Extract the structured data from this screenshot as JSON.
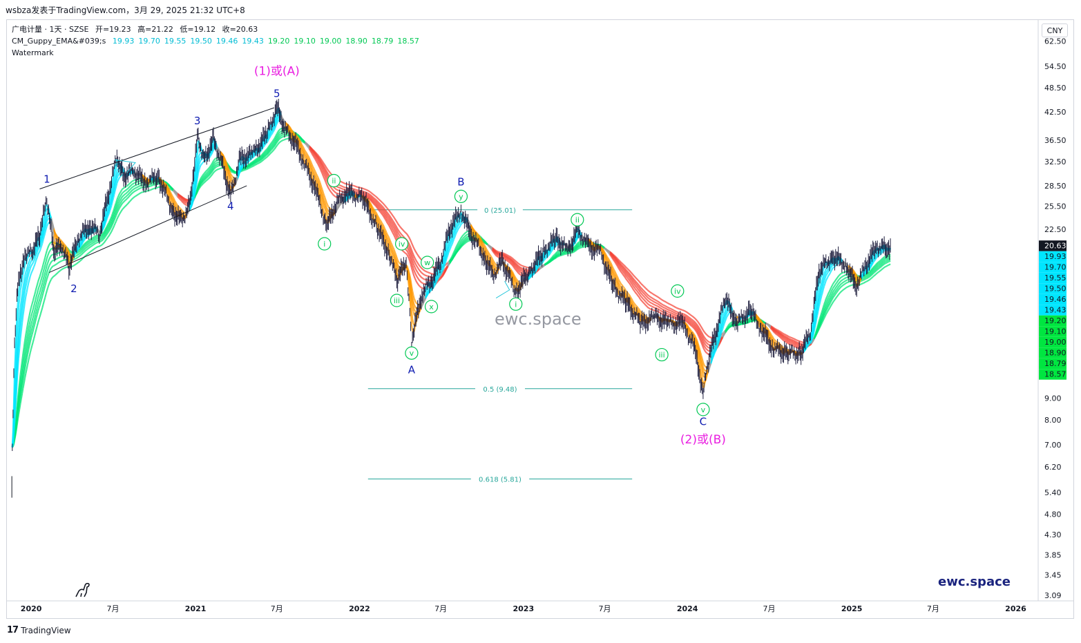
{
  "header": {
    "title": "wsbza发表于TradingView.com，3月 29, 2025 21:32 UTC+8"
  },
  "legend": {
    "symbol_line": "广电计量 · 1天 · SZSE",
    "ohlc": [
      {
        "label": "开",
        "value": "=19.23"
      },
      {
        "label": "高",
        "value": "=21.22"
      },
      {
        "label": "低",
        "value": "=19.12"
      },
      {
        "label": "收",
        "value": "=20.63"
      }
    ],
    "indicator_name": "CM_Guppy_EMA&#039;s",
    "indicator_values": [
      "19.93",
      "19.70",
      "19.55",
      "19.50",
      "19.46",
      "19.43",
      "19.20",
      "19.10",
      "19.00",
      "18.90",
      "18.79",
      "18.57"
    ],
    "watermark_line": "Watermark"
  },
  "colors": {
    "fast_ema": "#00bcd4",
    "slow_ema": "#00e676",
    "up_color": "#00e676",
    "down_color": "#f44336",
    "down_fast": "#ff9800",
    "neutral": "#9e9e9e",
    "wave_blue": "#0d1ab0",
    "wave_green": "#00c853",
    "wave_magenta": "#e91ee0",
    "fib": "#26a69a",
    "price_tag": "#131722"
  },
  "currency_button": "CNY",
  "watermark_text": "ewc.space",
  "brand_text": "ewc.space",
  "footer": {
    "logo": "17",
    "text": "TradingView"
  },
  "chart_data": {
    "type": "line",
    "title": "",
    "scale": "log",
    "ylim": [
      3.0,
      70.0
    ],
    "y_ticks": [
      62.5,
      54.5,
      48.5,
      42.5,
      36.5,
      32.5,
      28.5,
      25.5,
      22.5,
      9.0,
      8.0,
      7.0,
      6.2,
      5.4,
      4.8,
      4.3,
      3.85,
      3.45,
      3.09
    ],
    "y_tick_labels": [
      "62.50",
      "54.50",
      "48.50",
      "42.50",
      "36.50",
      "32.50",
      "28.50",
      "25.50",
      "22.50",
      "9.00",
      "8.00",
      "7.00",
      "6.20",
      "5.40",
      "4.80",
      "4.30",
      "3.85",
      "3.45",
      "3.09"
    ],
    "x_range": [
      "2019-11-08",
      "2026-02-20"
    ],
    "x_ticks": [
      {
        "date": "2020-01-01",
        "label": "2020",
        "bold": true
      },
      {
        "date": "2020-07-01",
        "label": "7月",
        "bold": false
      },
      {
        "date": "2021-01-01",
        "label": "2021",
        "bold": true
      },
      {
        "date": "2021-07-01",
        "label": "7月",
        "bold": false
      },
      {
        "date": "2022-01-01",
        "label": "2022",
        "bold": true
      },
      {
        "date": "2022-07-01",
        "label": "7月",
        "bold": false
      },
      {
        "date": "2023-01-01",
        "label": "2023",
        "bold": true
      },
      {
        "date": "2023-07-01",
        "label": "7月",
        "bold": false
      },
      {
        "date": "2024-01-01",
        "label": "2024",
        "bold": true
      },
      {
        "date": "2024-07-01",
        "label": "7月",
        "bold": false
      },
      {
        "date": "2025-01-01",
        "label": "2025",
        "bold": true
      },
      {
        "date": "2025-07-01",
        "label": "7月",
        "bold": false
      },
      {
        "date": "2026-01-01",
        "label": "2026",
        "bold": true
      }
    ],
    "price_series": [
      [
        "2019-11-20",
        6.9
      ],
      [
        "2019-11-25",
        12.0
      ],
      [
        "2019-12-02",
        16.5
      ],
      [
        "2019-12-10",
        18.0
      ],
      [
        "2019-12-20",
        19.5
      ],
      [
        "2020-01-05",
        20.0
      ],
      [
        "2020-01-20",
        22.0
      ],
      [
        "2020-02-05",
        26.5
      ],
      [
        "2020-02-20",
        20.0
      ],
      [
        "2020-03-10",
        20.5
      ],
      [
        "2020-03-25",
        18.3
      ],
      [
        "2020-04-15",
        21.5
      ],
      [
        "2020-05-10",
        23.0
      ],
      [
        "2020-06-01",
        22.0
      ],
      [
        "2020-06-20",
        27.0
      ],
      [
        "2020-07-10",
        33.5
      ],
      [
        "2020-07-25",
        30.0
      ],
      [
        "2020-08-15",
        31.0
      ],
      [
        "2020-09-10",
        29.0
      ],
      [
        "2020-10-10",
        30.0
      ],
      [
        "2020-11-10",
        25.0
      ],
      [
        "2020-12-01",
        23.5
      ],
      [
        "2020-12-20",
        26.0
      ],
      [
        "2021-01-05",
        37.5
      ],
      [
        "2021-01-20",
        33.0
      ],
      [
        "2021-02-10",
        36.5
      ],
      [
        "2021-03-01",
        32.0
      ],
      [
        "2021-03-20",
        27.0
      ],
      [
        "2021-04-10",
        33.0
      ],
      [
        "2021-05-10",
        34.0
      ],
      [
        "2021-06-10",
        38.0
      ],
      [
        "2021-07-01",
        43.5
      ],
      [
        "2021-07-20",
        38.5
      ],
      [
        "2021-08-10",
        36.0
      ],
      [
        "2021-09-01",
        32.0
      ],
      [
        "2021-09-25",
        28.0
      ],
      [
        "2021-10-20",
        22.8
      ],
      [
        "2021-11-10",
        26.0
      ],
      [
        "2021-12-05",
        27.5
      ],
      [
        "2022-01-10",
        26.5
      ],
      [
        "2022-02-10",
        22.5
      ],
      [
        "2022-03-10",
        19.5
      ],
      [
        "2022-03-25",
        17.0
      ],
      [
        "2022-04-15",
        19.0
      ],
      [
        "2022-04-27",
        12.3
      ],
      [
        "2022-05-20",
        16.0
      ],
      [
        "2022-06-10",
        17.0
      ],
      [
        "2022-07-01",
        19.0
      ],
      [
        "2022-07-20",
        22.5
      ],
      [
        "2022-08-15",
        25.0
      ],
      [
        "2022-09-05",
        22.0
      ],
      [
        "2022-10-05",
        19.5
      ],
      [
        "2022-10-25",
        17.5
      ],
      [
        "2022-11-15",
        19.0
      ],
      [
        "2022-12-15",
        16.0
      ],
      [
        "2023-01-15",
        18.0
      ],
      [
        "2023-02-15",
        20.0
      ],
      [
        "2023-03-15",
        21.5
      ],
      [
        "2023-04-10",
        20.0
      ],
      [
        "2023-05-01",
        22.5
      ],
      [
        "2023-05-25",
        20.5
      ],
      [
        "2023-06-20",
        20.0
      ],
      [
        "2023-07-20",
        16.5
      ],
      [
        "2023-08-20",
        15.0
      ],
      [
        "2023-09-20",
        13.5
      ],
      [
        "2023-10-20",
        14.0
      ],
      [
        "2023-11-20",
        13.5
      ],
      [
        "2023-12-20",
        13.5
      ],
      [
        "2024-01-15",
        12.0
      ],
      [
        "2024-02-05",
        9.3
      ],
      [
        "2024-02-20",
        11.5
      ],
      [
        "2024-03-10",
        13.5
      ],
      [
        "2024-03-25",
        15.5
      ],
      [
        "2024-04-20",
        13.5
      ],
      [
        "2024-05-20",
        14.5
      ],
      [
        "2024-06-15",
        13.0
      ],
      [
        "2024-07-10",
        11.8
      ],
      [
        "2024-08-10",
        11.5
      ],
      [
        "2024-09-10",
        11.5
      ],
      [
        "2024-10-01",
        13.0
      ],
      [
        "2024-10-20",
        18.0
      ],
      [
        "2024-11-20",
        19.5
      ],
      [
        "2024-12-20",
        18.5
      ],
      [
        "2025-01-10",
        16.5
      ],
      [
        "2025-02-01",
        18.5
      ],
      [
        "2025-02-25",
        20.5
      ],
      [
        "2025-03-20",
        20.3
      ],
      [
        "2025-03-28",
        20.63
      ]
    ],
    "ema_ribbon": {
      "fast_values": [
        19.93,
        19.7,
        19.55,
        19.5,
        19.46,
        19.43
      ],
      "slow_values": [
        19.2,
        19.1,
        19.0,
        18.9,
        18.79,
        18.57
      ],
      "current_price": 20.63
    },
    "fib_levels": [
      {
        "ratio": "0",
        "price": 25.01,
        "label": "0 (25.01)"
      },
      {
        "ratio": "0.5",
        "price": 9.48,
        "label": "0.5 (9.48)"
      },
      {
        "ratio": "0.618",
        "price": 5.81,
        "label": "0.618 (5.81)"
      }
    ],
    "fib_range": [
      "2022-01-20",
      "2023-08-31"
    ],
    "wave_labels": [
      {
        "text": "1",
        "date": "2020-02-05",
        "price": 29.5,
        "kind": "blue"
      },
      {
        "text": "2",
        "date": "2020-04-05",
        "price": 16.3,
        "kind": "blue"
      },
      {
        "text": "3",
        "date": "2021-01-05",
        "price": 40.5,
        "kind": "blue"
      },
      {
        "text": "4",
        "date": "2021-03-20",
        "price": 25.5,
        "kind": "blue"
      },
      {
        "text": "5",
        "date": "2021-07-01",
        "price": 47.0,
        "kind": "blue"
      },
      {
        "text": "(1)或(A)",
        "date": "2021-07-01",
        "price": 53.0,
        "kind": "magenta"
      },
      {
        "text": "i",
        "date": "2021-10-15",
        "price": 20.8,
        "kind": "circle"
      },
      {
        "text": "ii",
        "date": "2021-11-05",
        "price": 29.3,
        "kind": "circle"
      },
      {
        "text": "iii",
        "date": "2022-03-25",
        "price": 15.3,
        "kind": "circle"
      },
      {
        "text": "iv",
        "date": "2022-04-05",
        "price": 20.8,
        "kind": "circle"
      },
      {
        "text": "v",
        "date": "2022-04-27",
        "price": 11.5,
        "kind": "circle"
      },
      {
        "text": "A",
        "date": "2022-04-27",
        "price": 10.5,
        "kind": "blue"
      },
      {
        "text": "w",
        "date": "2022-06-01",
        "price": 18.8,
        "kind": "circle"
      },
      {
        "text": "x",
        "date": "2022-06-10",
        "price": 14.8,
        "kind": "circle"
      },
      {
        "text": "y",
        "date": "2022-08-15",
        "price": 26.9,
        "kind": "circle"
      },
      {
        "text": "B",
        "date": "2022-08-15",
        "price": 29.1,
        "kind": "blue"
      },
      {
        "text": "i",
        "date": "2022-12-15",
        "price": 15.0,
        "kind": "circle"
      },
      {
        "text": "ii",
        "date": "2023-05-01",
        "price": 23.7,
        "kind": "circle"
      },
      {
        "text": "iii",
        "date": "2023-11-05",
        "price": 11.4,
        "kind": "circle"
      },
      {
        "text": "iv",
        "date": "2023-12-10",
        "price": 16.1,
        "kind": "circle"
      },
      {
        "text": "v",
        "date": "2024-02-05",
        "price": 8.47,
        "kind": "circle"
      },
      {
        "text": "C",
        "date": "2024-02-05",
        "price": 7.93,
        "kind": "blue"
      },
      {
        "text": "(2)或(B)",
        "date": "2024-02-05",
        "price": 7.18,
        "kind": "magenta"
      }
    ],
    "channel": {
      "upper": [
        [
          "2020-01-20",
          28.0
        ],
        [
          "2021-06-25",
          43.5
        ]
      ],
      "lower": [
        [
          "2020-02-10",
          17.8
        ],
        [
          "2021-04-25",
          28.5
        ]
      ]
    },
    "triangles": [
      {
        "points": [
          [
            "2020-07-05",
            32.8
          ],
          [
            "2020-08-20",
            32.3
          ],
          [
            "2020-08-01",
            30.6
          ]
        ]
      },
      {
        "points": [
          [
            "2022-11-01",
            15.5
          ],
          [
            "2022-12-01",
            16.2
          ],
          [
            "2022-11-20",
            17.0
          ]
        ]
      }
    ],
    "right_tags": [
      {
        "value": "20.63",
        "bg": "#131722",
        "fg": "#ffffff"
      },
      {
        "value": "19.93",
        "bg": "#00e5ff",
        "fg": "#131722"
      },
      {
        "value": "19.70",
        "bg": "#00e5ff",
        "fg": "#131722"
      },
      {
        "value": "19.55",
        "bg": "#00e5ff",
        "fg": "#131722"
      },
      {
        "value": "19.50",
        "bg": "#00e5ff",
        "fg": "#131722"
      },
      {
        "value": "19.46",
        "bg": "#00e5ff",
        "fg": "#131722"
      },
      {
        "value": "19.43",
        "bg": "#00e5ff",
        "fg": "#131722"
      },
      {
        "value": "19.20",
        "bg": "#00e640",
        "fg": "#131722"
      },
      {
        "value": "19.10",
        "bg": "#00e640",
        "fg": "#131722"
      },
      {
        "value": "19.00",
        "bg": "#00e640",
        "fg": "#131722"
      },
      {
        "value": "18.90",
        "bg": "#00e640",
        "fg": "#131722"
      },
      {
        "value": "18.79",
        "bg": "#00e640",
        "fg": "#131722"
      },
      {
        "value": "18.57",
        "bg": "#00e640",
        "fg": "#131722"
      }
    ]
  }
}
